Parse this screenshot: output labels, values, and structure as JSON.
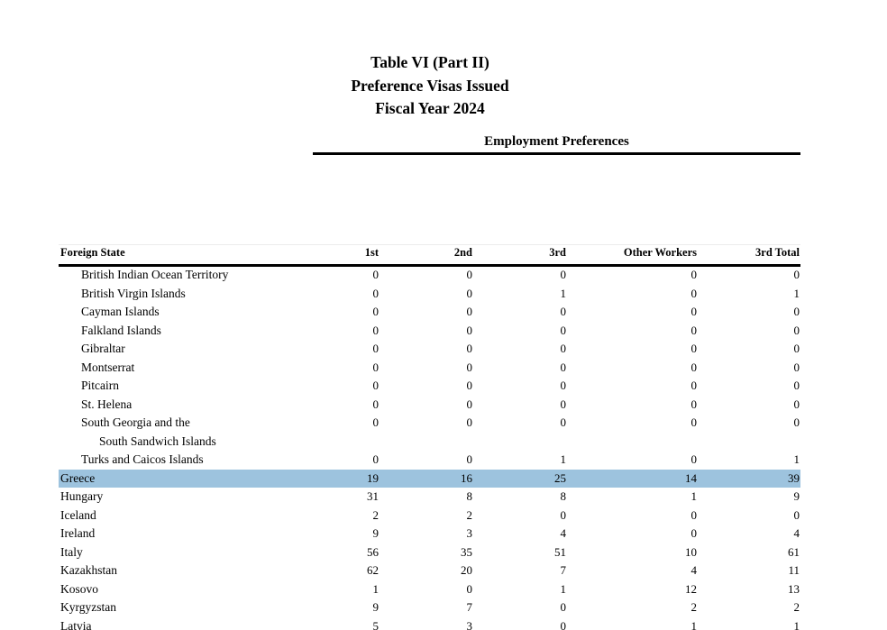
{
  "page": {
    "title_lines": [
      "Table VI (Part II)",
      "Preference Visas Issued",
      "Fiscal Year 2024"
    ],
    "section_header": "Employment Preferences"
  },
  "table": {
    "columns": [
      "Foreign State",
      "1st",
      "2nd",
      "3rd",
      "Other Workers",
      "3rd Total"
    ],
    "highlight_color": "#9dc3de",
    "rows": [
      {
        "state": "British Indian Ocean Territory",
        "indent": 1,
        "values": [
          "0",
          "0",
          "0",
          "0",
          "0"
        ],
        "highlighted": false
      },
      {
        "state": "British Virgin Islands",
        "indent": 1,
        "values": [
          "0",
          "0",
          "1",
          "0",
          "1"
        ],
        "highlighted": false
      },
      {
        "state": "Cayman Islands",
        "indent": 1,
        "values": [
          "0",
          "0",
          "0",
          "0",
          "0"
        ],
        "highlighted": false
      },
      {
        "state": "Falkland Islands",
        "indent": 1,
        "values": [
          "0",
          "0",
          "0",
          "0",
          "0"
        ],
        "highlighted": false
      },
      {
        "state": "Gibraltar",
        "indent": 1,
        "values": [
          "0",
          "0",
          "0",
          "0",
          "0"
        ],
        "highlighted": false
      },
      {
        "state": "Montserrat",
        "indent": 1,
        "values": [
          "0",
          "0",
          "0",
          "0",
          "0"
        ],
        "highlighted": false
      },
      {
        "state": "Pitcairn",
        "indent": 1,
        "values": [
          "0",
          "0",
          "0",
          "0",
          "0"
        ],
        "highlighted": false
      },
      {
        "state": "St. Helena",
        "indent": 1,
        "values": [
          "0",
          "0",
          "0",
          "0",
          "0"
        ],
        "highlighted": false
      },
      {
        "state": "South Georgia and the",
        "state_line2": "South Sandwich Islands",
        "indent": 1,
        "values": [
          "0",
          "0",
          "0",
          "0",
          "0"
        ],
        "highlighted": false
      },
      {
        "state": "Turks and Caicos Islands",
        "indent": 1,
        "values": [
          "0",
          "0",
          "1",
          "0",
          "1"
        ],
        "highlighted": false
      },
      {
        "state": "Greece",
        "indent": 0,
        "values": [
          "19",
          "16",
          "25",
          "14",
          "39"
        ],
        "highlighted": true
      },
      {
        "state": "Hungary",
        "indent": 0,
        "values": [
          "31",
          "8",
          "8",
          "1",
          "9"
        ],
        "highlighted": false
      },
      {
        "state": "Iceland",
        "indent": 0,
        "values": [
          "2",
          "2",
          "0",
          "0",
          "0"
        ],
        "highlighted": false
      },
      {
        "state": "Ireland",
        "indent": 0,
        "values": [
          "9",
          "3",
          "4",
          "0",
          "4"
        ],
        "highlighted": false
      },
      {
        "state": "Italy",
        "indent": 0,
        "values": [
          "56",
          "35",
          "51",
          "10",
          "61"
        ],
        "highlighted": false
      },
      {
        "state": "Kazakhstan",
        "indent": 0,
        "values": [
          "62",
          "20",
          "7",
          "4",
          "11"
        ],
        "highlighted": false
      },
      {
        "state": "Kosovo",
        "indent": 0,
        "values": [
          "1",
          "0",
          "1",
          "12",
          "13"
        ],
        "highlighted": false
      },
      {
        "state": "Kyrgyzstan",
        "indent": 0,
        "values": [
          "9",
          "7",
          "0",
          "2",
          "2"
        ],
        "highlighted": false
      },
      {
        "state": "Latvia",
        "indent": 0,
        "values": [
          "5",
          "3",
          "0",
          "1",
          "1"
        ],
        "highlighted": false
      }
    ]
  }
}
